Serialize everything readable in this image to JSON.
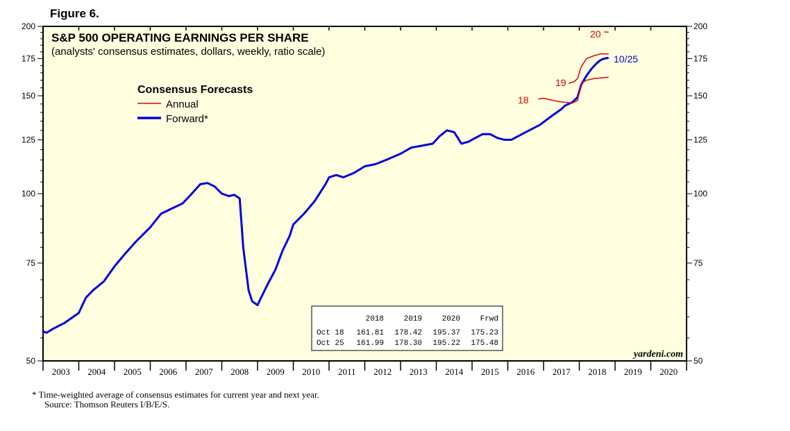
{
  "figure_label": "Figure 6.",
  "footnote": {
    "line1": "*   Time-weighted average of consensus estimates for current year and next year.",
    "line2": "Source: Thomson Reuters I/B/E/S."
  },
  "colors": {
    "annual": "#dd0000",
    "forward": "#0000dd",
    "plot_bg": "#ffffe0"
  },
  "table": {
    "header": [
      "",
      "2018",
      "2019",
      "2020",
      "Frwd"
    ],
    "rows": [
      [
        "Oct 18",
        "161.81",
        "178.42",
        "195.37",
        "175.23"
      ],
      [
        "Oct 25",
        "161.99",
        "178.30",
        "195.22",
        "175.48"
      ]
    ]
  },
  "chart_data": {
    "type": "line",
    "title": "S&P 500 OPERATING EARNINGS PER SHARE",
    "subtitle": "(analysts' consensus estimates, dollars, weekly, ratio scale)",
    "brand": "yardeni.com",
    "y_scale": "log",
    "ylim": [
      50,
      200
    ],
    "xlim": [
      2003.0,
      2021.0
    ],
    "y_ticks": [
      50,
      75,
      100,
      125,
      150,
      175,
      200
    ],
    "y_tick_labels": [
      "50",
      "75",
      "100",
      "125",
      "150",
      "175",
      "200"
    ],
    "x_tick_labels": [
      "2003",
      "2004",
      "2005",
      "2006",
      "2007",
      "2008",
      "2009",
      "2010",
      "2011",
      "2012",
      "2013",
      "2014",
      "2015",
      "2016",
      "2017",
      "2018",
      "2019",
      "2020"
    ],
    "legend": {
      "title": "Consensus Forecasts",
      "items": [
        "Annual",
        "Forward*"
      ],
      "placement": "upper-left"
    },
    "annotations": {
      "y2018": "18",
      "y2019": "19",
      "y2020": "20",
      "last_date": "10/25"
    },
    "series": [
      {
        "name": "Forward*",
        "x": [
          2003.0,
          2003.1,
          2003.3,
          2003.6,
          2004.0,
          2004.2,
          2004.4,
          2004.7,
          2005.0,
          2005.3,
          2005.6,
          2006.0,
          2006.3,
          2006.6,
          2006.9,
          2007.1,
          2007.4,
          2007.6,
          2007.8,
          2008.0,
          2008.2,
          2008.35,
          2008.5,
          2008.6,
          2008.75,
          2008.85,
          2009.0,
          2009.1,
          2009.3,
          2009.5,
          2009.7,
          2009.9,
          2010.0,
          2010.3,
          2010.6,
          2010.9,
          2011.0,
          2011.2,
          2011.4,
          2011.7,
          2012.0,
          2012.3,
          2012.6,
          2013.0,
          2013.3,
          2013.6,
          2013.9,
          2014.1,
          2014.3,
          2014.5,
          2014.6,
          2014.7,
          2014.9,
          2015.1,
          2015.3,
          2015.5,
          2015.7,
          2015.9,
          2016.1,
          2016.3,
          2016.6,
          2016.9,
          2017.1,
          2017.3,
          2017.5,
          2017.6,
          2017.8,
          2017.95,
          2018.05,
          2018.2,
          2018.35,
          2018.5,
          2018.6,
          2018.7,
          2018.82
        ],
        "y": [
          56.5,
          56.2,
          57.2,
          58.5,
          61.0,
          65.0,
          67.0,
          69.5,
          74.0,
          78.0,
          82.0,
          87.0,
          92.0,
          94.0,
          96.0,
          99.0,
          104.0,
          104.5,
          103.0,
          100.0,
          99.0,
          99.5,
          98.0,
          80.0,
          67.0,
          64.0,
          63.0,
          65.0,
          69.0,
          73.0,
          79.0,
          84.0,
          88.0,
          92.0,
          97.0,
          104.0,
          107.0,
          108.0,
          107.0,
          109.0,
          112.0,
          113.0,
          115.0,
          118.0,
          121.0,
          122.0,
          123.0,
          127.0,
          130.0,
          129.0,
          126.0,
          123.0,
          124.0,
          126.0,
          128.0,
          128.0,
          126.0,
          125.0,
          125.0,
          127.0,
          130.0,
          133.0,
          136.0,
          139.0,
          142.0,
          144.0,
          146.0,
          149.0,
          157.0,
          163.0,
          168.0,
          172.0,
          174.0,
          175.0,
          175.5
        ]
      },
      {
        "name": "Annual 2018",
        "x": [
          2016.85,
          2017.0,
          2017.2,
          2017.4,
          2017.6,
          2017.8,
          2017.95,
          2018.05,
          2018.2,
          2018.4,
          2018.6,
          2018.82
        ],
        "y": [
          148.0,
          148.5,
          147.5,
          146.5,
          146.0,
          145.5,
          147.0,
          158.0,
          160.0,
          161.0,
          161.5,
          162.0
        ]
      },
      {
        "name": "Annual 2019",
        "x": [
          2017.7,
          2017.85,
          2017.95,
          2018.05,
          2018.2,
          2018.4,
          2018.6,
          2018.82
        ],
        "y": [
          158.0,
          159.0,
          161.0,
          169.0,
          175.0,
          177.0,
          178.5,
          178.3
        ]
      },
      {
        "name": "Annual 2020",
        "x": [
          2018.7,
          2018.82
        ],
        "y": [
          195.5,
          195.2
        ]
      }
    ]
  }
}
